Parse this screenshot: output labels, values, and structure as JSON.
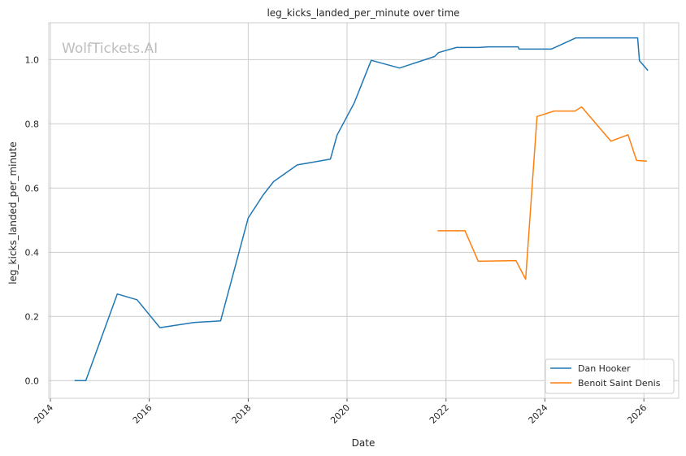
{
  "chart_data": {
    "type": "line",
    "title": "leg_kicks_landed_per_minute over time",
    "xlabel": "Date",
    "ylabel": "leg_kicks_landed_per_minute",
    "watermark": "WolfTickets.AI",
    "x_ticks": [
      "2014",
      "2016",
      "2018",
      "2020",
      "2022",
      "2024",
      "2026"
    ],
    "y_ticks": [
      "0.0",
      "0.2",
      "0.4",
      "0.6",
      "0.8",
      "1.0"
    ],
    "xlim": [
      "2013-12-20",
      "2026-09-15"
    ],
    "ylim": [
      -0.055,
      1.115
    ],
    "grid": true,
    "legend_position": "lower-right",
    "series": [
      {
        "name": "Dan Hooker",
        "color": "#1f77b4",
        "points": [
          [
            "2014-06-28",
            0.0
          ],
          [
            "2014-09-20",
            0.0
          ],
          [
            "2015-05-10",
            0.27
          ],
          [
            "2015-10-03",
            0.252
          ],
          [
            "2016-03-20",
            0.165
          ],
          [
            "2016-11-26",
            0.181
          ],
          [
            "2017-06-11",
            0.186
          ],
          [
            "2018-01-01",
            0.507
          ],
          [
            "2018-04-21",
            0.578
          ],
          [
            "2018-07-07",
            0.62
          ],
          [
            "2018-12-29",
            0.672
          ],
          [
            "2019-08-31",
            0.69
          ],
          [
            "2019-10-19",
            0.765
          ],
          [
            "2020-02-23",
            0.865
          ],
          [
            "2020-06-27",
            0.998
          ],
          [
            "2021-01-23",
            0.974
          ],
          [
            "2021-10-09",
            1.01
          ],
          [
            "2021-11-06",
            1.022
          ],
          [
            "2022-03-19",
            1.038
          ],
          [
            "2022-09-03",
            1.038
          ],
          [
            "2022-11-12",
            1.04
          ],
          [
            "2023-06-17",
            1.04
          ],
          [
            "2023-06-24",
            1.033
          ],
          [
            "2024-02-17",
            1.033
          ],
          [
            "2024-08-17",
            1.068
          ],
          [
            "2025-11-16",
            1.068
          ],
          [
            "2025-11-29",
            0.997
          ],
          [
            "2026-01-31",
            0.966
          ]
        ]
      },
      {
        "name": "Benoit Saint Denis",
        "color": "#ff7f0e",
        "points": [
          [
            "2021-10-30",
            0.467
          ],
          [
            "2022-05-21",
            0.467
          ],
          [
            "2022-08-27",
            0.372
          ],
          [
            "2023-06-01",
            0.374
          ],
          [
            "2023-08-12",
            0.316
          ],
          [
            "2023-11-04",
            0.823
          ],
          [
            "2024-03-09",
            0.84
          ],
          [
            "2024-08-10",
            0.84
          ],
          [
            "2024-09-28",
            0.853
          ],
          [
            "2025-05-03",
            0.746
          ],
          [
            "2025-09-06",
            0.766
          ],
          [
            "2025-11-08",
            0.686
          ],
          [
            "2026-01-24",
            0.684
          ]
        ]
      }
    ]
  }
}
